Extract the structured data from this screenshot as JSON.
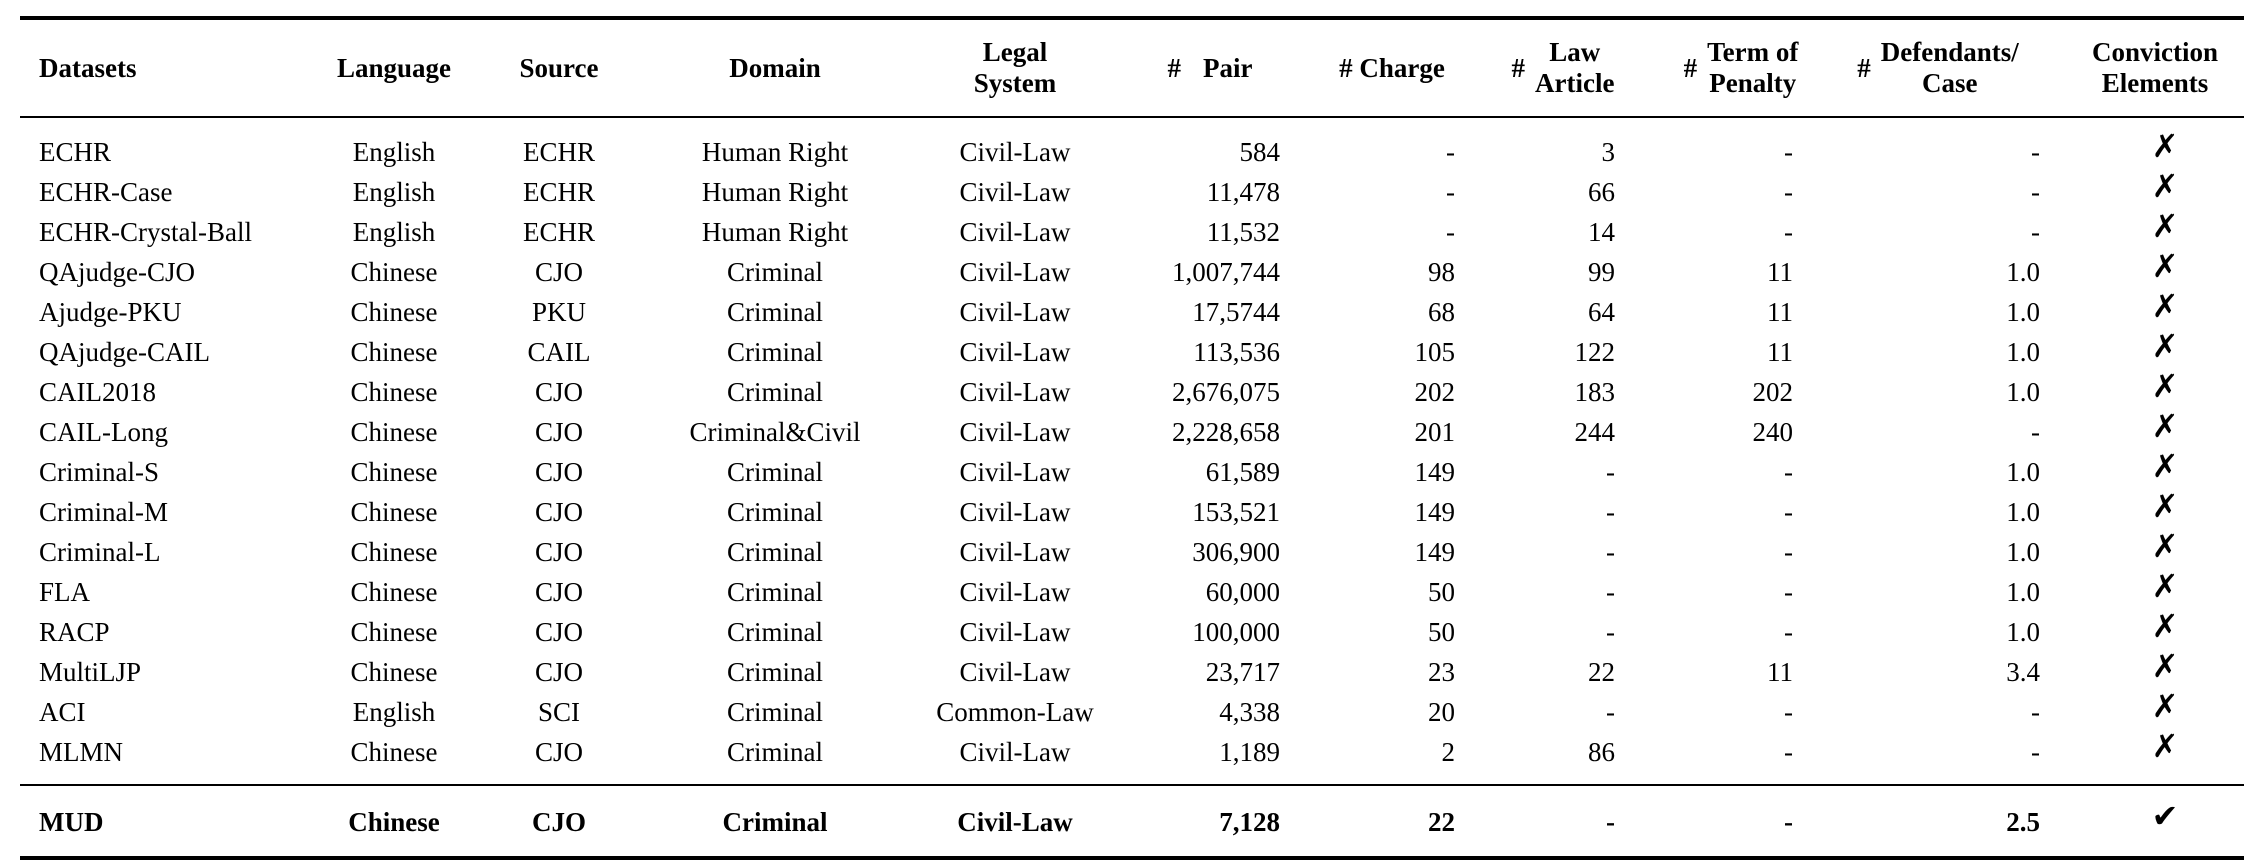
{
  "table": {
    "headers": {
      "datasets": "Datasets",
      "language": "Language",
      "source": "Source",
      "domain": "Domain",
      "legal_system": [
        "Legal",
        "System"
      ],
      "pair": {
        "hash": "#",
        "label": "Pair"
      },
      "charge": "# Charge",
      "law_article": {
        "hash": "#",
        "lines": [
          "Law",
          "Article"
        ]
      },
      "term_of_penalty": {
        "hash": "#",
        "lines": [
          "Term of",
          "Penalty"
        ]
      },
      "defendants_case": {
        "hash": "#",
        "lines": [
          "Defendants/",
          "Case"
        ]
      },
      "conviction_elements": [
        "Conviction",
        "Elements"
      ]
    },
    "rows": [
      [
        "ECHR",
        "English",
        "ECHR",
        "Human Right",
        "Civil-Law",
        "584",
        "-",
        "3",
        "-",
        "-",
        "✗"
      ],
      [
        "ECHR-Case",
        "English",
        "ECHR",
        "Human Right",
        "Civil-Law",
        "11,478",
        "-",
        "66",
        "-",
        "-",
        "✗"
      ],
      [
        "ECHR-Crystal-Ball",
        "English",
        "ECHR",
        "Human Right",
        "Civil-Law",
        "11,532",
        "-",
        "14",
        "-",
        "-",
        "✗"
      ],
      [
        "QAjudge-CJO",
        "Chinese",
        "CJO",
        "Criminal",
        "Civil-Law",
        "1,007,744",
        "98",
        "99",
        "11",
        "1.0",
        "✗"
      ],
      [
        "Ajudge-PKU",
        "Chinese",
        "PKU",
        "Criminal",
        "Civil-Law",
        "17,5744",
        "68",
        "64",
        "11",
        "1.0",
        "✗"
      ],
      [
        "QAjudge-CAIL",
        "Chinese",
        "CAIL",
        "Criminal",
        "Civil-Law",
        "113,536",
        "105",
        "122",
        "11",
        "1.0",
        "✗"
      ],
      [
        "CAIL2018",
        "Chinese",
        "CJO",
        "Criminal",
        "Civil-Law",
        "2,676,075",
        "202",
        "183",
        "202",
        "1.0",
        "✗"
      ],
      [
        "CAIL-Long",
        "Chinese",
        "CJO",
        "Criminal&Civil",
        "Civil-Law",
        "2,228,658",
        "201",
        "244",
        "240",
        "-",
        "✗"
      ],
      [
        "Criminal-S",
        "Chinese",
        "CJO",
        "Criminal",
        "Civil-Law",
        "61,589",
        "149",
        "-",
        "-",
        "1.0",
        "✗"
      ],
      [
        "Criminal-M",
        "Chinese",
        "CJO",
        "Criminal",
        "Civil-Law",
        "153,521",
        "149",
        "-",
        "-",
        "1.0",
        "✗"
      ],
      [
        "Criminal-L",
        "Chinese",
        "CJO",
        "Criminal",
        "Civil-Law",
        "306,900",
        "149",
        "-",
        "-",
        "1.0",
        "✗"
      ],
      [
        "FLA",
        "Chinese",
        "CJO",
        "Criminal",
        "Civil-Law",
        "60,000",
        "50",
        "-",
        "-",
        "1.0",
        "✗"
      ],
      [
        "RACP",
        "Chinese",
        "CJO",
        "Criminal",
        "Civil-Law",
        "100,000",
        "50",
        "-",
        "-",
        "1.0",
        "✗"
      ],
      [
        "MultiLJP",
        "Chinese",
        "CJO",
        "Criminal",
        "Civil-Law",
        "23,717",
        "23",
        "22",
        "11",
        "3.4",
        "✗"
      ],
      [
        "ACI",
        "English",
        "SCI",
        "Criminal",
        "Common-Law",
        "4,338",
        "20",
        "-",
        "-",
        "-",
        "✗"
      ],
      [
        "MLMN",
        "Chinese",
        "CJO",
        "Criminal",
        "Civil-Law",
        "1,189",
        "2",
        "86",
        "-",
        "-",
        "✗"
      ]
    ],
    "final_row": [
      "MUD",
      "Chinese",
      "CJO",
      "Criminal",
      "Civil-Law",
      "7,128",
      "22",
      "-",
      "-",
      "2.5",
      "✔"
    ]
  }
}
